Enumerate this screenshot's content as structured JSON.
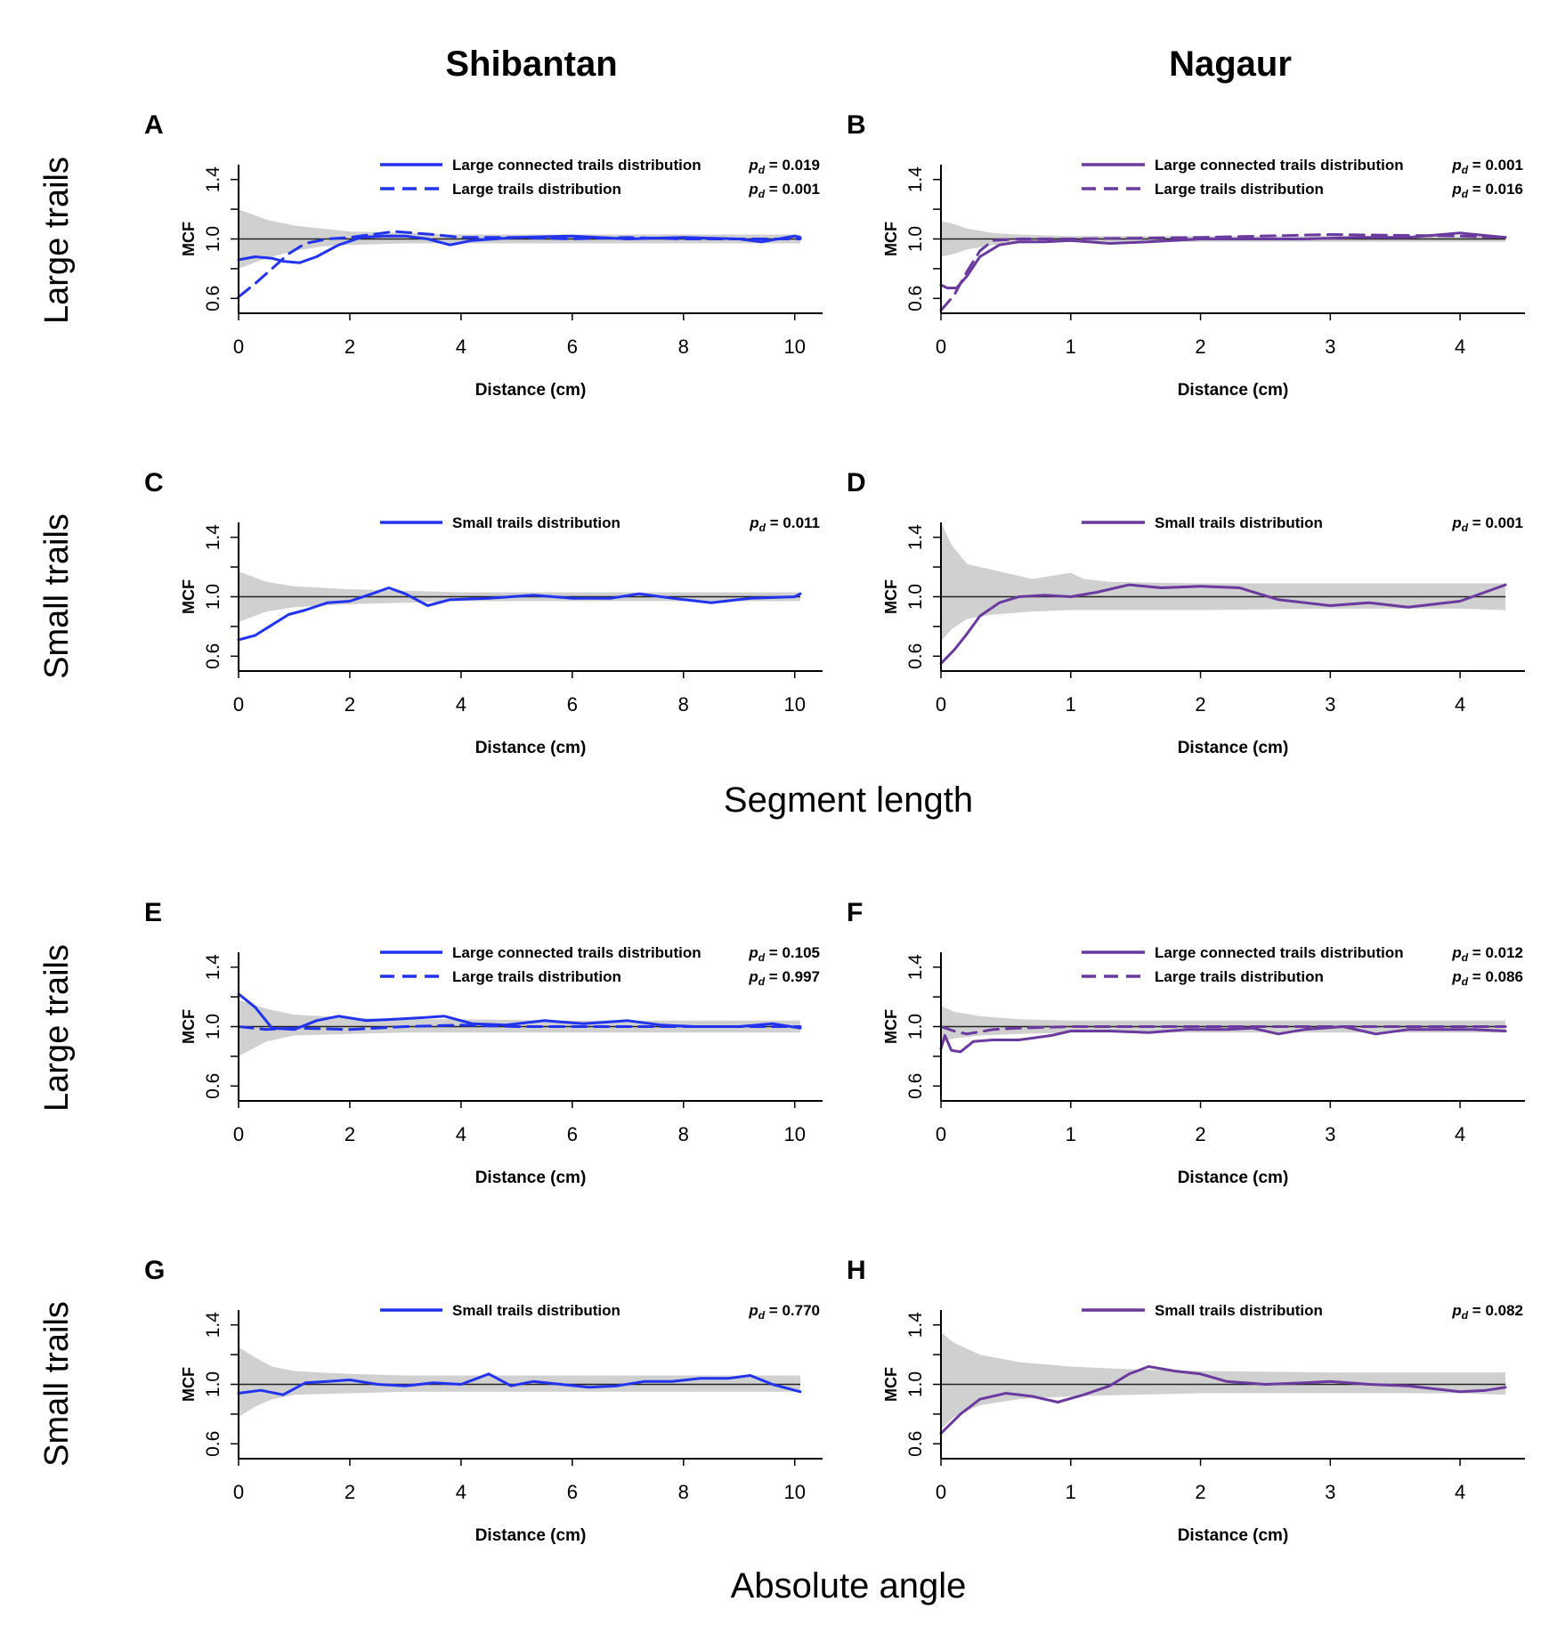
{
  "column_titles": [
    "Shibantan",
    "Nagaur"
  ],
  "row_labels": [
    "Large trails",
    "Small trails",
    "Large trails",
    "Small trails"
  ],
  "section_labels": [
    "Segment length",
    "Absolute angle"
  ],
  "colors": {
    "shibantan": "#2233ee",
    "nagaur": "#6a3a9e",
    "envelope": "#d0d0d0"
  },
  "chart_data": [
    {
      "panel": "A",
      "type": "line",
      "site": "Shibantan",
      "trail_size": "Large trails",
      "metric": "Segment length",
      "xlabel": "Distance (cm)",
      "ylabel": "MCF",
      "xlim": [
        0,
        10.5
      ],
      "ylim": [
        0.5,
        1.5
      ],
      "xticks": [
        "0",
        "2",
        "4",
        "6",
        "8",
        "10"
      ],
      "yticks": [
        "0.6",
        "1.0",
        "1.4"
      ],
      "reference_line": 1.0,
      "envelope": {
        "x": [
          0,
          0.5,
          1,
          1.5,
          2,
          3,
          4,
          6,
          8,
          10,
          10.1
        ],
        "upper": [
          1.2,
          1.13,
          1.09,
          1.07,
          1.05,
          1.04,
          1.03,
          1.03,
          1.03,
          1.03,
          1.03
        ],
        "lower": [
          0.8,
          0.87,
          0.92,
          0.95,
          0.96,
          0.97,
          0.97,
          0.97,
          0.97,
          0.97,
          0.97
        ]
      },
      "series": [
        {
          "name": "Large connected trails distribution",
          "p_value": "0.019",
          "style": "solid",
          "x": [
            0,
            0.3,
            0.6,
            0.8,
            1.1,
            1.4,
            1.8,
            2.2,
            2.6,
            3.0,
            3.4,
            3.8,
            4.2,
            5,
            6,
            7,
            8,
            9,
            9.4,
            10,
            10.1
          ],
          "y": [
            0.86,
            0.88,
            0.87,
            0.85,
            0.84,
            0.88,
            0.96,
            1.01,
            1.02,
            1.02,
            1.0,
            0.96,
            0.99,
            1.01,
            1.02,
            1.0,
            1.01,
            1.0,
            0.98,
            1.02,
            1.01
          ]
        },
        {
          "name": "Large trails distribution",
          "p_value": "0.001",
          "style": "dashed",
          "x": [
            0,
            0.3,
            0.6,
            0.9,
            1.2,
            1.6,
            2.0,
            2.8,
            3.5,
            4,
            5,
            6,
            7,
            8,
            9,
            10,
            10.1
          ],
          "y": [
            0.61,
            0.7,
            0.8,
            0.9,
            0.97,
            1.0,
            1.01,
            1.05,
            1.03,
            1.01,
            1.01,
            1.0,
            1.01,
            1.0,
            1.0,
            1.0,
            1.0
          ]
        }
      ]
    },
    {
      "panel": "B",
      "type": "line",
      "site": "Nagaur",
      "trail_size": "Large trails",
      "metric": "Segment length",
      "xlabel": "Distance (cm)",
      "ylabel": "MCF",
      "xlim": [
        0,
        4.5
      ],
      "ylim": [
        0.5,
        1.5
      ],
      "xticks": [
        "0",
        "1",
        "2",
        "3",
        "4"
      ],
      "yticks": [
        "0.6",
        "1.0",
        "1.4"
      ],
      "reference_line": 1.0,
      "envelope": {
        "x": [
          0,
          0.1,
          0.2,
          0.4,
          0.6,
          1,
          2,
          3,
          4,
          4.35
        ],
        "upper": [
          1.12,
          1.1,
          1.07,
          1.04,
          1.03,
          1.02,
          1.02,
          1.02,
          1.02,
          1.02
        ],
        "lower": [
          0.88,
          0.9,
          0.93,
          0.96,
          0.97,
          0.98,
          0.98,
          0.98,
          0.98,
          0.98
        ]
      },
      "series": [
        {
          "name": "Large connected trails distribution",
          "p_value": "0.001",
          "style": "solid",
          "x": [
            0,
            0.05,
            0.12,
            0.2,
            0.3,
            0.45,
            0.6,
            0.8,
            1.0,
            1.3,
            1.6,
            2.0,
            2.4,
            2.8,
            3.2,
            3.6,
            4.0,
            4.35
          ],
          "y": [
            0.69,
            0.67,
            0.67,
            0.75,
            0.88,
            0.96,
            0.98,
            0.98,
            0.99,
            0.97,
            0.98,
            1.0,
            1.0,
            1.0,
            1.01,
            1.01,
            1.04,
            1.01
          ]
        },
        {
          "name": "Large trails distribution",
          "p_value": "0.016",
          "style": "dashed",
          "x": [
            0,
            0.1,
            0.2,
            0.3,
            0.4,
            0.6,
            1,
            2,
            3,
            4,
            4.35
          ],
          "y": [
            0.52,
            0.62,
            0.78,
            0.92,
            0.99,
            1.0,
            1.0,
            1.01,
            1.03,
            1.02,
            1.01
          ]
        }
      ]
    },
    {
      "panel": "C",
      "type": "line",
      "site": "Shibantan",
      "trail_size": "Small trails",
      "metric": "Segment length",
      "xlabel": "Distance (cm)",
      "ylabel": "MCF",
      "xlim": [
        0,
        10.5
      ],
      "ylim": [
        0.5,
        1.5
      ],
      "xticks": [
        "0",
        "2",
        "4",
        "6",
        "8",
        "10"
      ],
      "yticks": [
        "0.6",
        "1.0",
        "1.4"
      ],
      "reference_line": 1.0,
      "envelope": {
        "x": [
          0,
          0.5,
          1,
          2,
          3,
          4,
          6,
          8,
          10,
          10.1
        ],
        "upper": [
          1.17,
          1.1,
          1.07,
          1.05,
          1.04,
          1.03,
          1.03,
          1.03,
          1.03,
          1.03
        ],
        "lower": [
          0.83,
          0.9,
          0.93,
          0.95,
          0.96,
          0.97,
          0.97,
          0.97,
          0.97,
          0.97
        ]
      },
      "series": [
        {
          "name": "Small trails distribution",
          "p_value": "0.011",
          "style": "solid",
          "x": [
            0,
            0.3,
            0.6,
            0.9,
            1.2,
            1.6,
            2.0,
            2.4,
            2.7,
            3.0,
            3.4,
            3.8,
            4.5,
            5.3,
            6.0,
            6.7,
            7.2,
            7.8,
            8.5,
            9.2,
            10.0,
            10.1
          ],
          "y": [
            0.71,
            0.74,
            0.81,
            0.88,
            0.91,
            0.96,
            0.97,
            1.02,
            1.06,
            1.02,
            0.94,
            0.98,
            0.99,
            1.01,
            0.99,
            0.99,
            1.02,
            0.99,
            0.96,
            0.99,
            1.0,
            1.02
          ]
        }
      ]
    },
    {
      "panel": "D",
      "type": "line",
      "site": "Nagaur",
      "trail_size": "Small trails",
      "metric": "Segment length",
      "xlabel": "Distance (cm)",
      "ylabel": "MCF",
      "xlim": [
        0,
        4.5
      ],
      "ylim": [
        0.5,
        1.5
      ],
      "xticks": [
        "0",
        "1",
        "2",
        "3",
        "4"
      ],
      "yticks": [
        "0.6",
        "1.0",
        "1.4"
      ],
      "reference_line": 1.0,
      "envelope": {
        "x": [
          0,
          0.08,
          0.2,
          0.4,
          0.7,
          1.0,
          1.1,
          1.3,
          2,
          3,
          4,
          4.35
        ],
        "upper": [
          1.5,
          1.35,
          1.22,
          1.18,
          1.12,
          1.16,
          1.12,
          1.1,
          1.09,
          1.09,
          1.09,
          1.09
        ],
        "lower": [
          0.7,
          0.78,
          0.85,
          0.88,
          0.9,
          0.91,
          0.91,
          0.91,
          0.91,
          0.92,
          0.92,
          0.91
        ]
      },
      "series": [
        {
          "name": "Small trails distribution",
          "p_value": "0.001",
          "style": "solid",
          "x": [
            0,
            0.1,
            0.2,
            0.3,
            0.45,
            0.6,
            0.8,
            1.0,
            1.2,
            1.45,
            1.7,
            2.0,
            2.3,
            2.6,
            3.0,
            3.3,
            3.6,
            4.0,
            4.35
          ],
          "y": [
            0.55,
            0.64,
            0.75,
            0.87,
            0.96,
            1.0,
            1.01,
            1.0,
            1.03,
            1.08,
            1.06,
            1.07,
            1.06,
            0.98,
            0.94,
            0.96,
            0.93,
            0.97,
            1.08
          ]
        }
      ]
    },
    {
      "panel": "E",
      "type": "line",
      "site": "Shibantan",
      "trail_size": "Large trails",
      "metric": "Absolute angle",
      "xlabel": "Distance (cm)",
      "ylabel": "MCF",
      "xlim": [
        0,
        10.5
      ],
      "ylim": [
        0.5,
        1.5
      ],
      "xticks": [
        "0",
        "2",
        "4",
        "6",
        "8",
        "10"
      ],
      "yticks": [
        "0.6",
        "1.0",
        "1.4"
      ],
      "reference_line": 1.0,
      "envelope": {
        "x": [
          0,
          0.5,
          1,
          2,
          3,
          4,
          6,
          8,
          10,
          10.1
        ],
        "upper": [
          1.18,
          1.12,
          1.08,
          1.06,
          1.05,
          1.05,
          1.04,
          1.04,
          1.04,
          1.04
        ],
        "lower": [
          0.8,
          0.9,
          0.94,
          0.95,
          0.96,
          0.96,
          0.96,
          0.96,
          0.96,
          0.96
        ]
      },
      "series": [
        {
          "name": "Large connected trails distribution",
          "p_value": "0.105",
          "style": "solid",
          "x": [
            0,
            0.3,
            0.6,
            1.0,
            1.4,
            1.8,
            2.3,
            2.8,
            3.3,
            3.7,
            4.2,
            4.8,
            5.5,
            6.2,
            7.0,
            7.6,
            8.2,
            9.0,
            9.6,
            10.1
          ],
          "y": [
            1.22,
            1.13,
            0.99,
            0.98,
            1.04,
            1.07,
            1.04,
            1.05,
            1.06,
            1.07,
            1.02,
            1.01,
            1.04,
            1.02,
            1.04,
            1.01,
            1.0,
            1.0,
            1.02,
            0.99
          ]
        },
        {
          "name": "Large trails distribution",
          "p_value": "0.997",
          "style": "dashed",
          "x": [
            0,
            0.5,
            1,
            2,
            3,
            4,
            5,
            6,
            7,
            8,
            9,
            10.1
          ],
          "y": [
            1.0,
            0.98,
            0.99,
            0.98,
            1.0,
            1.01,
            1.0,
            1.0,
            1.0,
            1.0,
            1.0,
            1.0
          ]
        }
      ]
    },
    {
      "panel": "F",
      "type": "line",
      "site": "Nagaur",
      "trail_size": "Large trails",
      "metric": "Absolute angle",
      "xlabel": "Distance (cm)",
      "ylabel": "MCF",
      "xlim": [
        0,
        4.5
      ],
      "ylim": [
        0.5,
        1.5
      ],
      "xticks": [
        "0",
        "1",
        "2",
        "3",
        "4"
      ],
      "yticks": [
        "0.6",
        "1.0",
        "1.4"
      ],
      "reference_line": 1.0,
      "envelope": {
        "x": [
          0,
          0.1,
          0.3,
          0.6,
          1,
          2,
          3,
          4,
          4.35
        ],
        "upper": [
          1.14,
          1.1,
          1.07,
          1.05,
          1.04,
          1.04,
          1.04,
          1.04,
          1.04
        ],
        "lower": [
          0.9,
          0.92,
          0.94,
          0.95,
          0.96,
          0.96,
          0.96,
          0.96,
          0.96
        ]
      },
      "series": [
        {
          "name": "Large connected trails distribution",
          "p_value": "0.012",
          "style": "solid",
          "x": [
            0,
            0.03,
            0.08,
            0.15,
            0.25,
            0.4,
            0.6,
            0.85,
            1.0,
            1.3,
            1.6,
            1.9,
            2.2,
            2.4,
            2.6,
            2.8,
            3.1,
            3.35,
            3.6,
            3.9,
            4.1,
            4.35
          ],
          "y": [
            0.85,
            0.94,
            0.84,
            0.83,
            0.9,
            0.91,
            0.91,
            0.94,
            0.97,
            0.97,
            0.96,
            0.98,
            0.98,
            0.99,
            0.95,
            0.98,
            1.0,
            0.95,
            0.98,
            0.98,
            0.98,
            0.97
          ]
        },
        {
          "name": "Large trails distribution",
          "p_value": "0.086",
          "style": "dashed",
          "x": [
            0,
            0.1,
            0.2,
            0.4,
            0.6,
            1,
            2,
            3,
            4,
            4.35
          ],
          "y": [
            1.0,
            0.97,
            0.95,
            0.98,
            0.99,
            1.0,
            1.0,
            1.0,
            1.0,
            1.0
          ]
        }
      ]
    },
    {
      "panel": "G",
      "type": "line",
      "site": "Shibantan",
      "trail_size": "Small trails",
      "metric": "Absolute angle",
      "xlabel": "Distance (cm)",
      "ylabel": "MCF",
      "xlim": [
        0,
        10.5
      ],
      "ylim": [
        0.5,
        1.5
      ],
      "xticks": [
        "0",
        "2",
        "4",
        "6",
        "8",
        "10"
      ],
      "yticks": [
        "0.6",
        "1.0",
        "1.4"
      ],
      "reference_line": 1.0,
      "envelope": {
        "x": [
          0,
          0.3,
          0.6,
          1,
          2,
          3,
          4,
          6,
          8,
          10,
          10.1
        ],
        "upper": [
          1.25,
          1.18,
          1.12,
          1.09,
          1.07,
          1.06,
          1.06,
          1.06,
          1.06,
          1.06,
          1.06
        ],
        "lower": [
          0.78,
          0.85,
          0.9,
          0.93,
          0.94,
          0.95,
          0.95,
          0.95,
          0.95,
          0.95,
          0.95
        ]
      },
      "series": [
        {
          "name": "Small trails distribution",
          "p_value": "0.770",
          "style": "solid",
          "x": [
            0,
            0.4,
            0.8,
            1.2,
            1.6,
            2.0,
            2.5,
            3.0,
            3.5,
            4.0,
            4.5,
            4.9,
            5.3,
            5.8,
            6.3,
            6.8,
            7.3,
            7.8,
            8.3,
            8.8,
            9.2,
            9.6,
            10.1
          ],
          "y": [
            0.94,
            0.96,
            0.93,
            1.01,
            1.02,
            1.03,
            1.0,
            0.99,
            1.01,
            1.0,
            1.07,
            0.99,
            1.02,
            1.0,
            0.98,
            0.99,
            1.02,
            1.02,
            1.04,
            1.04,
            1.06,
            1.0,
            0.95
          ]
        }
      ]
    },
    {
      "panel": "H",
      "type": "line",
      "site": "Nagaur",
      "trail_size": "Small trails",
      "metric": "Absolute angle",
      "xlabel": "Distance (cm)",
      "ylabel": "MCF",
      "xlim": [
        0,
        4.5
      ],
      "ylim": [
        0.5,
        1.5
      ],
      "xticks": [
        "0",
        "1",
        "2",
        "3",
        "4"
      ],
      "yticks": [
        "0.6",
        "1.0",
        "1.4"
      ],
      "reference_line": 1.0,
      "envelope": {
        "x": [
          0,
          0.1,
          0.3,
          0.6,
          1.0,
          1.5,
          2,
          3,
          4,
          4.35
        ],
        "upper": [
          1.35,
          1.28,
          1.2,
          1.15,
          1.12,
          1.1,
          1.09,
          1.08,
          1.08,
          1.08
        ],
        "lower": [
          0.7,
          0.78,
          0.86,
          0.9,
          0.92,
          0.93,
          0.94,
          0.94,
          0.94,
          0.93
        ]
      },
      "series": [
        {
          "name": "Small trails distribution",
          "p_value": "0.082",
          "style": "solid",
          "x": [
            0,
            0.15,
            0.3,
            0.5,
            0.7,
            0.9,
            1.1,
            1.3,
            1.45,
            1.6,
            1.8,
            2.0,
            2.2,
            2.5,
            2.8,
            3.0,
            3.3,
            3.6,
            3.8,
            4.0,
            4.2,
            4.35
          ],
          "y": [
            0.67,
            0.8,
            0.9,
            0.94,
            0.92,
            0.88,
            0.93,
            0.99,
            1.07,
            1.12,
            1.09,
            1.07,
            1.02,
            1.0,
            1.01,
            1.02,
            1.0,
            0.99,
            0.97,
            0.95,
            0.96,
            0.98
          ]
        }
      ]
    }
  ]
}
